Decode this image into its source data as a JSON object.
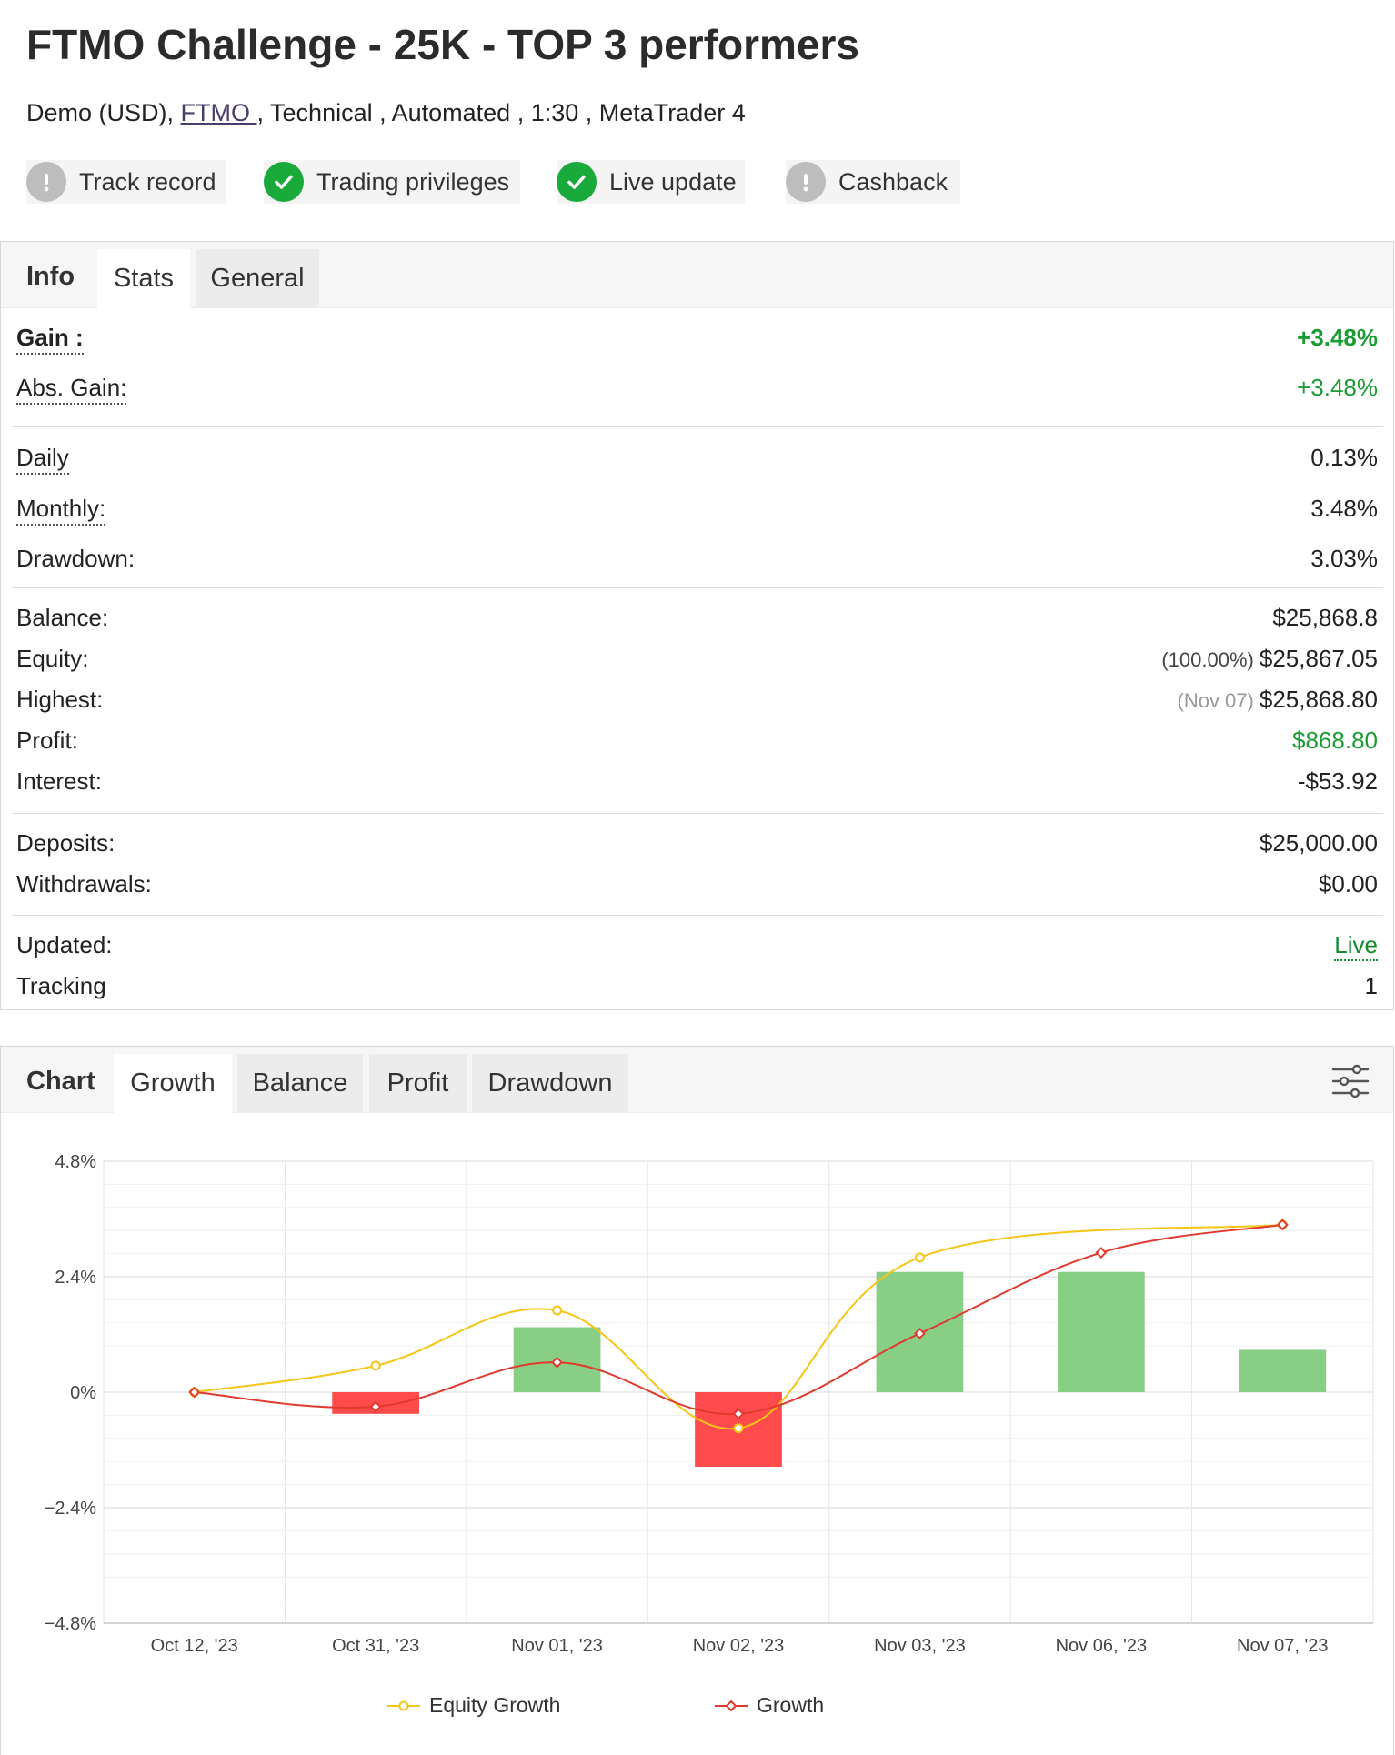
{
  "header": {
    "title": "FTMO Challenge - 25K - TOP 3 performers",
    "meta": {
      "account": "Demo (USD),",
      "broker": "FTMO ",
      "rest": ", Technical , Automated , 1:30 , MetaTrader 4"
    },
    "badges": [
      {
        "label": "Track record",
        "icon": "exclamation-icon",
        "status": "grey"
      },
      {
        "label": "Trading privileges",
        "icon": "check-icon",
        "status": "green"
      },
      {
        "label": "Live update",
        "icon": "check-icon",
        "status": "green"
      },
      {
        "label": "Cashback",
        "icon": "exclamation-icon",
        "status": "grey"
      }
    ]
  },
  "info_panel": {
    "heading": "Info",
    "tabs": [
      "Stats",
      "General"
    ],
    "active_tab": "Stats",
    "stats": {
      "gain": {
        "label": "Gain :",
        "value": "+3.48%"
      },
      "abs_gain": {
        "label": "Abs. Gain:",
        "value": "+3.48%"
      },
      "daily": {
        "label": "Daily",
        "value": "0.13%"
      },
      "monthly": {
        "label": "Monthly:",
        "value": "3.48%"
      },
      "drawdown": {
        "label": "Drawdown:",
        "value": "3.03%"
      },
      "balance": {
        "label": "Balance:",
        "value": "$25,868.8"
      },
      "equity": {
        "label": "Equity:",
        "prefix": "(100.00%)",
        "value": "$25,867.05"
      },
      "highest": {
        "label": "Highest:",
        "prefix": "(Nov 07)",
        "value": "$25,868.80"
      },
      "profit": {
        "label": "Profit:",
        "value": "$868.80"
      },
      "interest": {
        "label": "Interest:",
        "value": "-$53.92"
      },
      "deposits": {
        "label": "Deposits:",
        "value": "$25,000.00"
      },
      "withdrawals": {
        "label": "Withdrawals:",
        "value": "$0.00"
      },
      "updated": {
        "label": "Updated:",
        "value": "Live"
      },
      "tracking": {
        "label": "Tracking",
        "value": "1"
      }
    },
    "colors": {
      "positive": "#1a9c34",
      "live": "#138b2e"
    }
  },
  "chart_panel": {
    "heading": "Chart",
    "tabs": [
      "Growth",
      "Balance",
      "Profit",
      "Drawdown"
    ],
    "active_tab": "Growth",
    "settings_icon": "sliders-icon"
  },
  "chart_data": {
    "type": "bar",
    "categories": [
      "Oct 12, '23",
      "Oct 31, '23",
      "Nov 01, '23",
      "Nov 02, '23",
      "Nov 03, '23",
      "Nov 06, '23",
      "Nov 07, '23"
    ],
    "y_ticks": [
      "4.8%",
      "2.4%",
      "0%",
      "−2.4%",
      "−4.8%"
    ],
    "ylim": [
      -4.8,
      4.8
    ],
    "grid": true,
    "bars": {
      "values": [
        0,
        -0.45,
        1.35,
        -1.55,
        2.5,
        2.5,
        0.88
      ],
      "positive_color": "#88cf85",
      "negative_color": "#ff4b4b"
    },
    "series": [
      {
        "name": "Equity Growth",
        "type": "line",
        "color": "#f5c518",
        "values": [
          0,
          0.55,
          1.7,
          -0.75,
          2.8,
          null,
          3.48
        ]
      },
      {
        "name": "Growth",
        "type": "line",
        "color": "#e03a2f",
        "values": [
          0,
          -0.3,
          0.62,
          -0.45,
          1.22,
          2.9,
          3.48
        ]
      }
    ],
    "legend_position": "bottom"
  }
}
